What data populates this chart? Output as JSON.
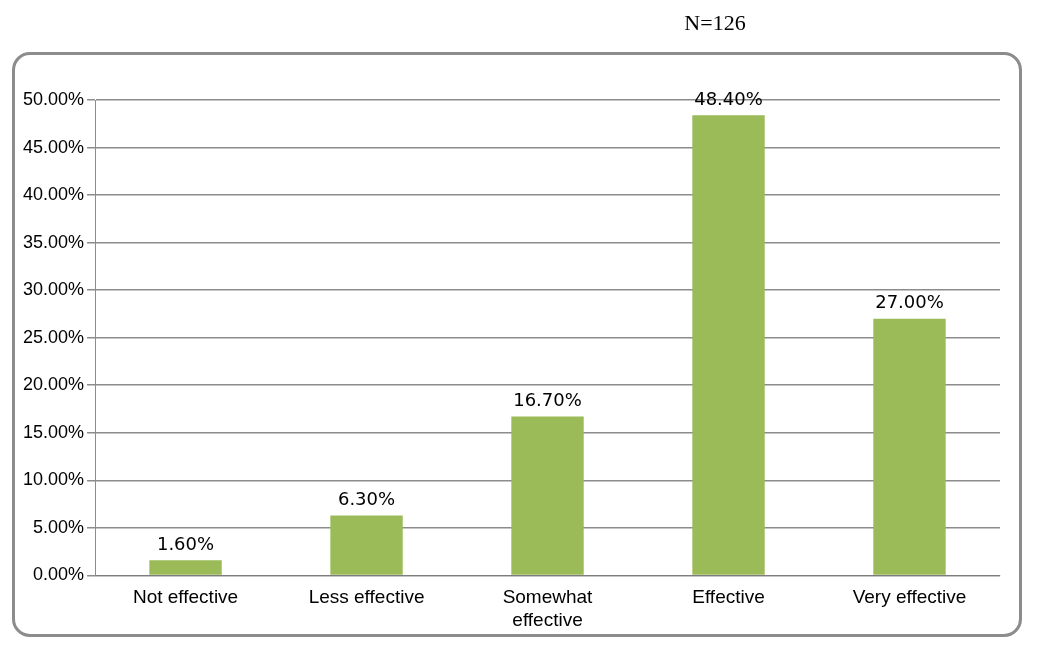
{
  "chart_data": {
    "type": "bar",
    "title": "N=126",
    "categories": [
      "Not effective",
      "Less effective",
      "Somewhat effective",
      "Effective",
      "Very effective"
    ],
    "values": [
      1.6,
      6.3,
      16.7,
      48.4,
      27.0
    ],
    "value_labels": [
      "1.60%",
      "6.30%",
      "16.70%",
      "48.40%",
      "27.00%"
    ],
    "color": "#9bbb59",
    "ylim": [
      0,
      50
    ],
    "yticks": [
      {
        "value": 0,
        "label": "0.00%"
      },
      {
        "value": 5,
        "label": "5.00%"
      },
      {
        "value": 10,
        "label": "10.00%"
      },
      {
        "value": 15,
        "label": "15.00%"
      },
      {
        "value": 20,
        "label": "20.00%"
      },
      {
        "value": 25,
        "label": "25.00%"
      },
      {
        "value": 30,
        "label": "30.00%"
      },
      {
        "value": 35,
        "label": "35.00%"
      },
      {
        "value": 40,
        "label": "40.00%"
      },
      {
        "value": 45,
        "label": "45.00%"
      },
      {
        "value": 50,
        "label": "50.00%"
      }
    ],
    "grid": "y"
  }
}
